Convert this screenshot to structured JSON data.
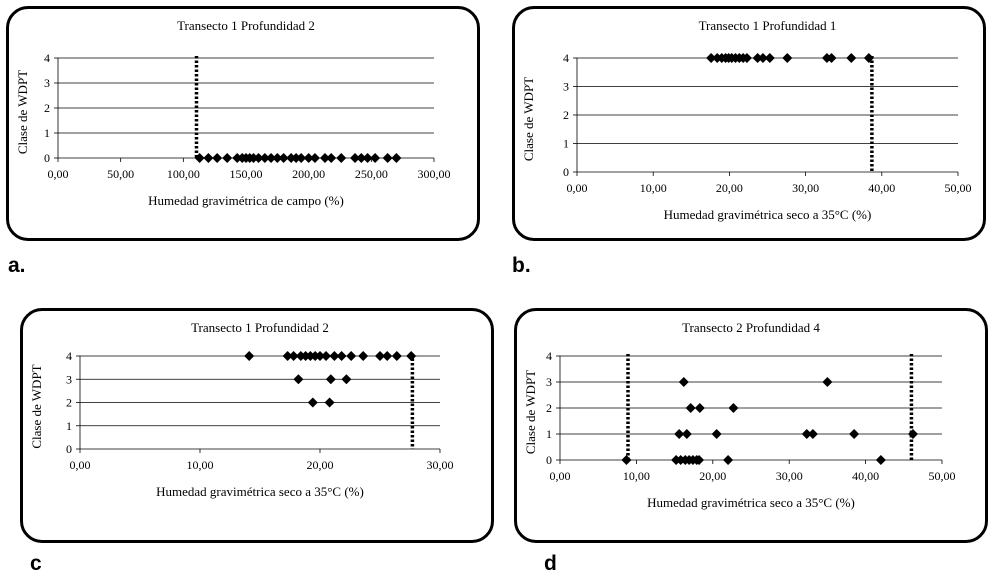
{
  "charts": [
    {
      "letter": "a.",
      "chart_data": {
        "type": "scatter",
        "title": "Transecto 1 Profundidad 2",
        "xlabel": "Humedad gravimétrica de campo (%)",
        "ylabel": "Clase de WDPT",
        "xlim": [
          0,
          300
        ],
        "ylim": [
          0,
          4
        ],
        "xticks": [
          "0,00",
          "50,00",
          "100,00",
          "150,00",
          "200,00",
          "250,00",
          "300,00"
        ],
        "yticks": [
          "0",
          "1",
          "2",
          "3",
          "4"
        ],
        "grid": "horizontal",
        "threshold_lines_x": [
          110.5
        ],
        "points": [
          [
            113,
            0
          ],
          [
            120,
            0
          ],
          [
            127,
            0
          ],
          [
            135,
            0
          ],
          [
            143,
            0
          ],
          [
            147,
            0
          ],
          [
            150,
            0
          ],
          [
            153,
            0
          ],
          [
            156,
            0
          ],
          [
            160,
            0
          ],
          [
            165,
            0
          ],
          [
            170,
            0
          ],
          [
            175,
            0
          ],
          [
            180,
            0
          ],
          [
            186,
            0
          ],
          [
            190,
            0
          ],
          [
            194,
            0
          ],
          [
            200,
            0
          ],
          [
            205,
            0
          ],
          [
            213,
            0
          ],
          [
            218,
            0
          ],
          [
            226,
            0
          ],
          [
            237,
            0
          ],
          [
            242,
            0
          ],
          [
            247,
            0
          ],
          [
            253,
            0
          ],
          [
            263,
            0
          ],
          [
            270,
            0
          ]
        ]
      }
    },
    {
      "letter": "b.",
      "chart_data": {
        "type": "scatter",
        "title": "Transecto 1 Profundidad 1",
        "xlabel": "Humedad gravimétrica seco a 35°C (%)",
        "ylabel": "Clase de WDPT",
        "xlim": [
          0,
          50
        ],
        "ylim": [
          0,
          4
        ],
        "xticks": [
          "0,00",
          "10,00",
          "20,00",
          "30,00",
          "40,00",
          "50,00"
        ],
        "yticks": [
          "0",
          "1",
          "2",
          "3",
          "4"
        ],
        "grid": "horizontal",
        "threshold_lines_x": [
          38.7
        ],
        "points": [
          [
            17.6,
            4
          ],
          [
            18.4,
            4
          ],
          [
            19.0,
            4
          ],
          [
            19.5,
            4
          ],
          [
            19.9,
            4
          ],
          [
            20.3,
            4
          ],
          [
            20.8,
            4
          ],
          [
            21.3,
            4
          ],
          [
            21.8,
            4
          ],
          [
            22.3,
            4
          ],
          [
            23.7,
            4
          ],
          [
            24.4,
            4
          ],
          [
            25.3,
            4
          ],
          [
            27.6,
            4
          ],
          [
            32.8,
            4
          ],
          [
            33.4,
            4
          ],
          [
            36.0,
            4
          ],
          [
            38.3,
            4
          ]
        ]
      }
    },
    {
      "letter": "c",
      "chart_data": {
        "type": "scatter",
        "title": "Transecto 1 Profundidad 2",
        "xlabel": "Humedad gravimétrica seco a 35°C (%)",
        "ylabel": "Clase de WDPT",
        "xlim": [
          0,
          30
        ],
        "ylim": [
          0,
          4
        ],
        "xticks": [
          "0,00",
          "10,00",
          "20,00",
          "30,00"
        ],
        "yticks": [
          "0",
          "1",
          "2",
          "3",
          "4"
        ],
        "grid": "horizontal",
        "threshold_lines_x": [
          27.7
        ],
        "points": [
          [
            14.1,
            4
          ],
          [
            17.3,
            4
          ],
          [
            17.8,
            4
          ],
          [
            18.4,
            4
          ],
          [
            18.8,
            4
          ],
          [
            19.2,
            4
          ],
          [
            19.6,
            4
          ],
          [
            20.0,
            4
          ],
          [
            20.5,
            4
          ],
          [
            21.2,
            4
          ],
          [
            21.8,
            4
          ],
          [
            22.6,
            4
          ],
          [
            23.6,
            4
          ],
          [
            25.0,
            4
          ],
          [
            25.6,
            4
          ],
          [
            26.4,
            4
          ],
          [
            27.6,
            4
          ],
          [
            18.2,
            3
          ],
          [
            20.9,
            3
          ],
          [
            22.2,
            3
          ],
          [
            19.4,
            2
          ],
          [
            20.8,
            2
          ]
        ]
      }
    },
    {
      "letter": "d",
      "chart_data": {
        "type": "scatter",
        "title": "Transecto 2 Profundidad 4",
        "xlabel": "Humedad gravimétrica seco a 35°C (%)",
        "ylabel": "Clase de WDPT",
        "xlim": [
          0,
          50
        ],
        "ylim": [
          0,
          4
        ],
        "xticks": [
          "0,00",
          "10,00",
          "20,00",
          "30,00",
          "40,00",
          "50,00"
        ],
        "yticks": [
          "0",
          "1",
          "2",
          "3",
          "4"
        ],
        "grid": "horizontal",
        "threshold_lines_x": [
          8.9,
          46.0
        ],
        "points": [
          [
            16.2,
            3
          ],
          [
            35.0,
            3
          ],
          [
            17.1,
            2
          ],
          [
            18.3,
            2
          ],
          [
            22.7,
            2
          ],
          [
            15.6,
            1
          ],
          [
            16.6,
            1
          ],
          [
            20.5,
            1
          ],
          [
            32.3,
            1
          ],
          [
            33.1,
            1
          ],
          [
            38.5,
            1
          ],
          [
            46.2,
            1
          ],
          [
            8.7,
            0
          ],
          [
            15.2,
            0
          ],
          [
            15.8,
            0
          ],
          [
            16.4,
            0
          ],
          [
            16.9,
            0
          ],
          [
            17.4,
            0
          ],
          [
            17.9,
            0
          ],
          [
            18.2,
            0
          ],
          [
            22.0,
            0
          ],
          [
            42.0,
            0
          ]
        ]
      }
    }
  ]
}
